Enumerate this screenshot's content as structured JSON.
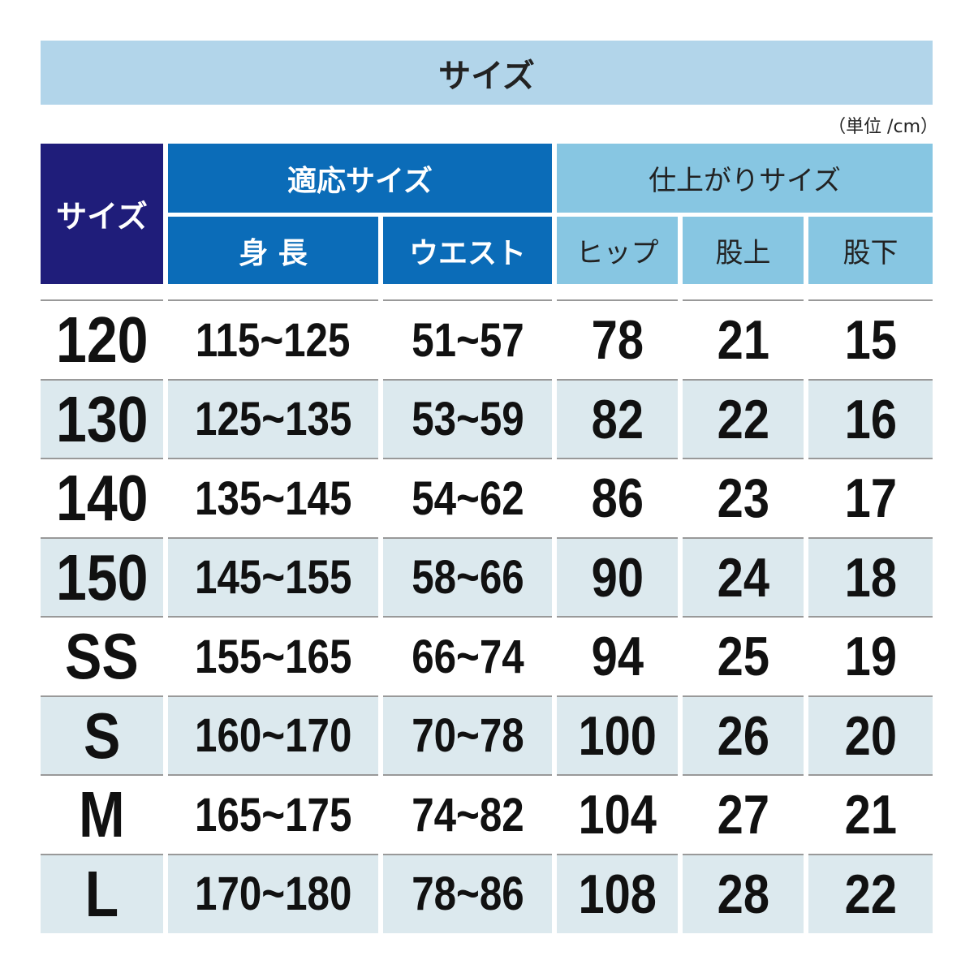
{
  "title": "サイズ",
  "unit_note": "（単位 /cm）",
  "header": {
    "size": "サイズ",
    "fit_group": "適応サイズ",
    "finished_group": "仕上がりサイズ",
    "height": "身 長",
    "waist": "ウエスト",
    "hip": "ヒップ",
    "rise": "股上",
    "inseam": "股下"
  },
  "colors": {
    "band": "#b2d5ea",
    "size_header": "#1f1d7a",
    "fit_header": "#0b6cb8",
    "finished_header": "#87c6e2",
    "alt_row": "#dce9ee"
  },
  "rows": [
    {
      "size": "120",
      "height": "115~125",
      "waist": "51~57",
      "hip": "78",
      "rise": "21",
      "inseam": "15"
    },
    {
      "size": "130",
      "height": "125~135",
      "waist": "53~59",
      "hip": "82",
      "rise": "22",
      "inseam": "16"
    },
    {
      "size": "140",
      "height": "135~145",
      "waist": "54~62",
      "hip": "86",
      "rise": "23",
      "inseam": "17"
    },
    {
      "size": "150",
      "height": "145~155",
      "waist": "58~66",
      "hip": "90",
      "rise": "24",
      "inseam": "18"
    },
    {
      "size": "SS",
      "height": "155~165",
      "waist": "66~74",
      "hip": "94",
      "rise": "25",
      "inseam": "19"
    },
    {
      "size": "S",
      "height": "160~170",
      "waist": "70~78",
      "hip": "100",
      "rise": "26",
      "inseam": "20"
    },
    {
      "size": "M",
      "height": "165~175",
      "waist": "74~82",
      "hip": "104",
      "rise": "27",
      "inseam": "21"
    },
    {
      "size": "L",
      "height": "170~180",
      "waist": "78~86",
      "hip": "108",
      "rise": "28",
      "inseam": "22"
    }
  ]
}
